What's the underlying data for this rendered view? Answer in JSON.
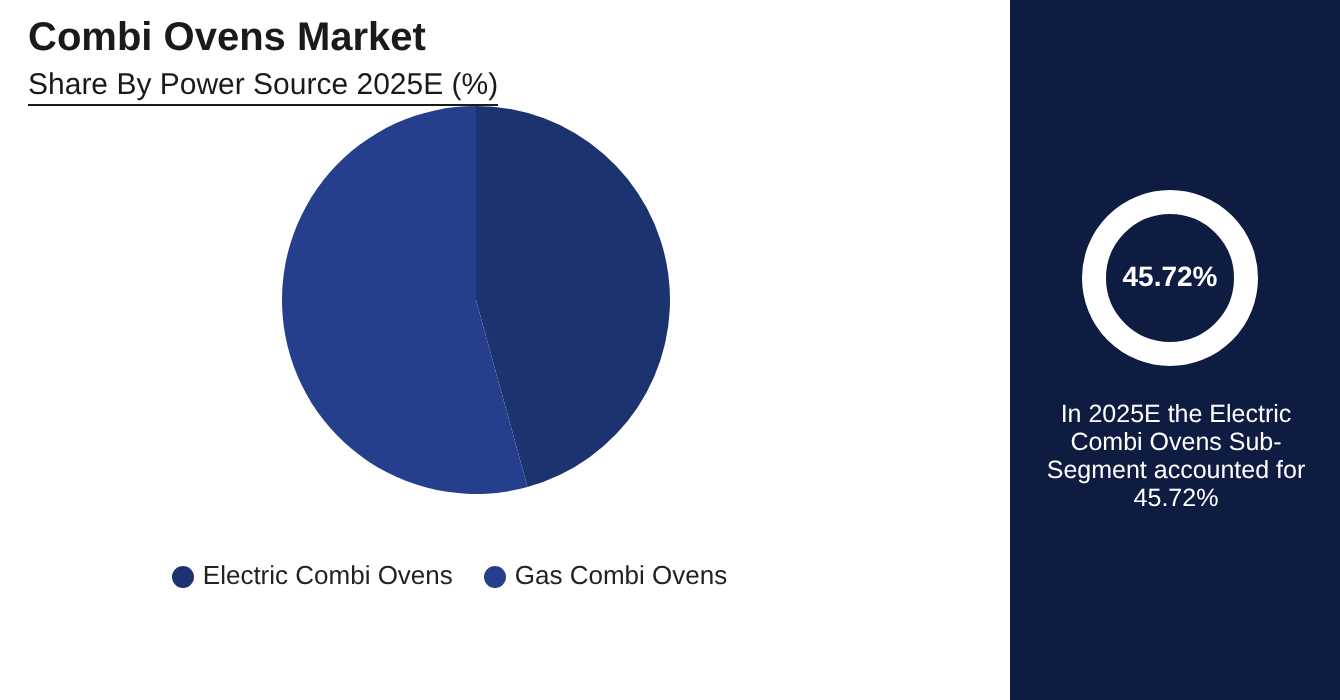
{
  "chart_data": [
    {
      "type": "pie",
      "title": "Combi Ovens Market",
      "subtitle": "Share By Power Source 2025E (%)",
      "categories": [
        "Electric Combi Ovens",
        "Gas Combi Ovens"
      ],
      "values": [
        45.72,
        54.28
      ],
      "colors": [
        "#1b3470",
        "#263f8c"
      ],
      "legend": "bottom"
    },
    {
      "type": "other",
      "annotations": [
        "45.72%",
        "In 2025E the Electric Combi Ovens Sub-Segment accounted for 45.72%"
      ]
    }
  ]
}
